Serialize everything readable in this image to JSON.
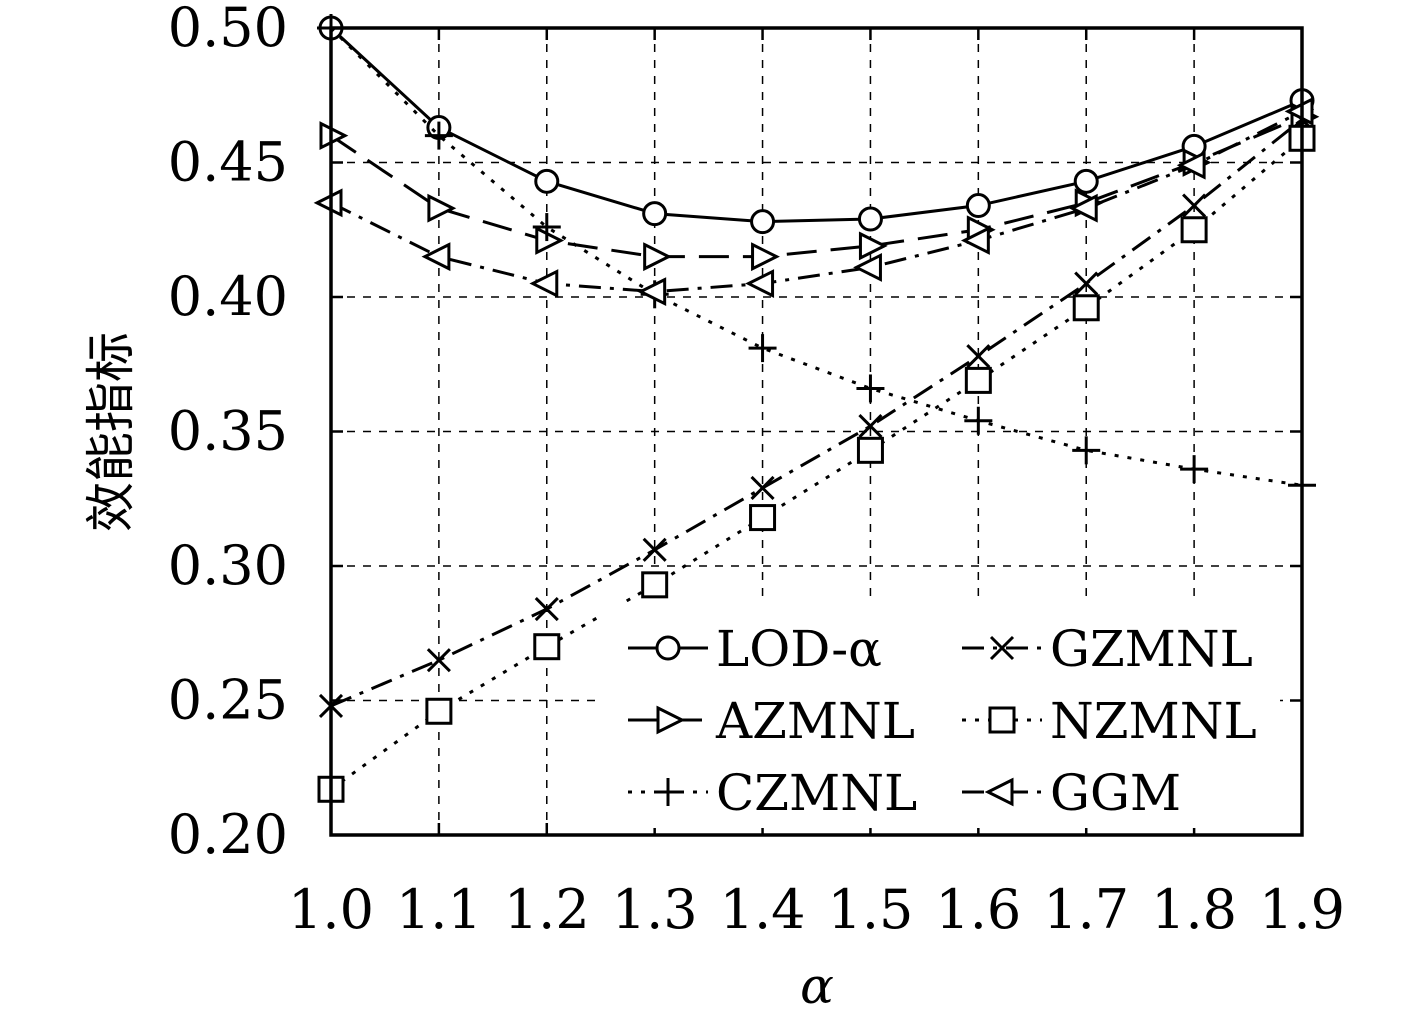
{
  "chart_data": {
    "type": "line",
    "xlabel": "α",
    "ylabel": "效能指标",
    "xlim": [
      1.0,
      1.9
    ],
    "ylim": [
      0.2,
      0.5
    ],
    "x": [
      1.0,
      1.1,
      1.2,
      1.3,
      1.4,
      1.5,
      1.6,
      1.7,
      1.8,
      1.9
    ],
    "x_tick_labels": [
      "1.0",
      "1.1",
      "1.2",
      "1.3",
      "1.4",
      "1.5",
      "1.6",
      "1.7",
      "1.8",
      "1.9"
    ],
    "y_ticks": [
      0.2,
      0.25,
      0.3,
      0.35,
      0.4,
      0.45,
      0.5
    ],
    "y_tick_labels": [
      "0.20",
      "0.25",
      "0.30",
      "0.35",
      "0.40",
      "0.45",
      "0.50"
    ],
    "grid": true,
    "legend_position": "bottom-right",
    "series": [
      {
        "name": "LOD-α",
        "marker": "circle",
        "dash": "solid",
        "values": [
          0.5,
          0.463,
          0.443,
          0.431,
          0.428,
          0.429,
          0.434,
          0.443,
          0.456,
          0.473
        ]
      },
      {
        "name": "AZMNL",
        "marker": "triangle-right",
        "dash": "longdash",
        "values": [
          0.46,
          0.433,
          0.421,
          0.415,
          0.415,
          0.419,
          0.425,
          0.435,
          0.45,
          0.467
        ]
      },
      {
        "name": "CZMNL",
        "marker": "plus",
        "dash": "dotted",
        "values": [
          0.5,
          0.46,
          0.426,
          0.401,
          0.381,
          0.366,
          0.354,
          0.343,
          0.336,
          0.33
        ]
      },
      {
        "name": "GZMNL",
        "marker": "x",
        "dash": "dashdot",
        "values": [
          0.248,
          0.265,
          0.284,
          0.306,
          0.329,
          0.352,
          0.378,
          0.405,
          0.434,
          0.466
        ]
      },
      {
        "name": "NZMNL",
        "marker": "square",
        "dash": "dotted",
        "values": [
          0.217,
          0.246,
          0.27,
          0.293,
          0.318,
          0.343,
          0.369,
          0.396,
          0.425,
          0.459
        ]
      },
      {
        "name": "GGM",
        "marker": "triangle-left",
        "dash": "dashdot",
        "values": [
          0.435,
          0.415,
          0.405,
          0.402,
          0.405,
          0.411,
          0.421,
          0.433,
          0.449,
          0.469
        ]
      }
    ]
  }
}
